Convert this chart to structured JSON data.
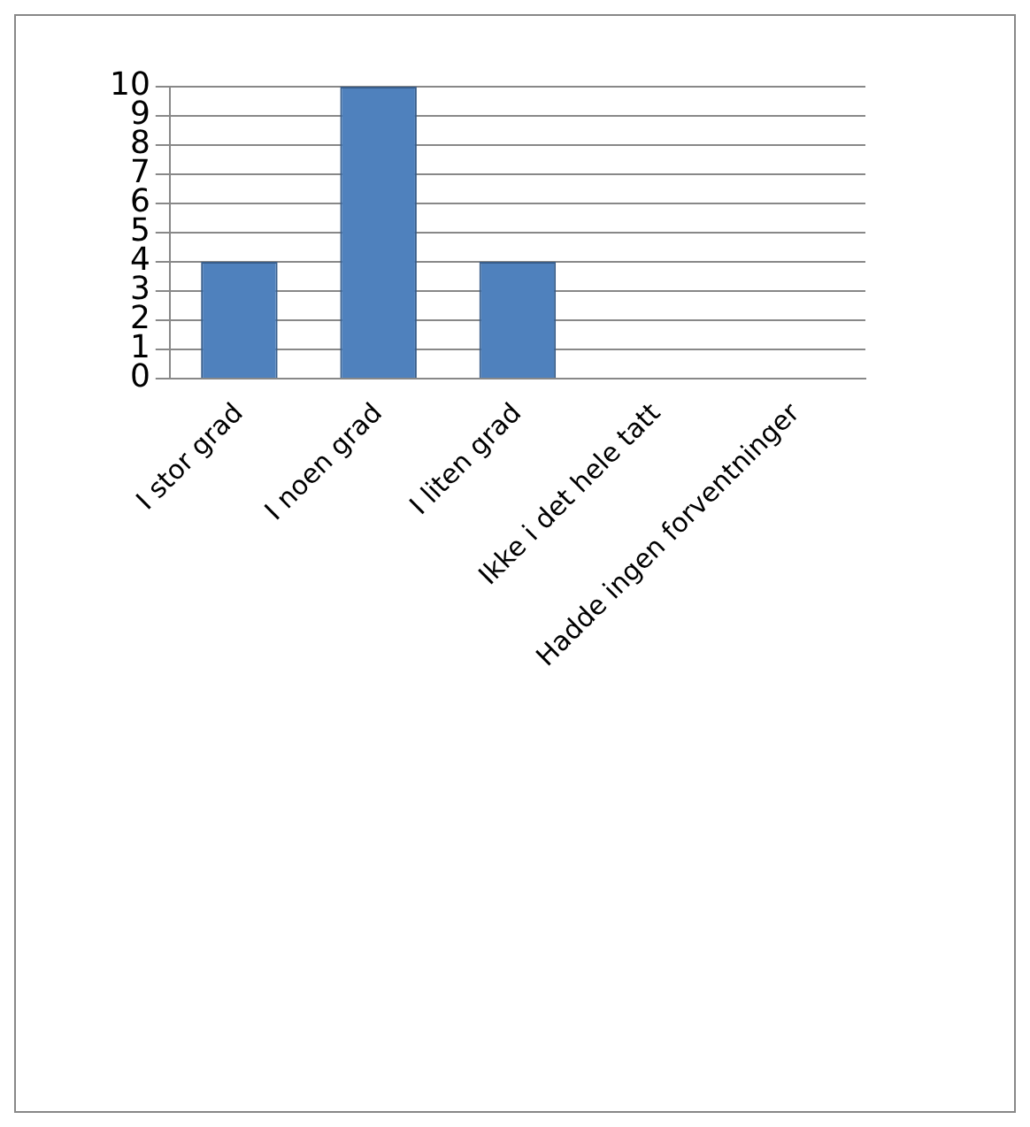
{
  "chart_data": {
    "type": "bar",
    "categories": [
      "I stor grad",
      "I noen grad",
      "I liten grad",
      "Ikke i det hele tatt",
      "Hadde ingen forventninger"
    ],
    "values": [
      4,
      10,
      4,
      0,
      0
    ],
    "color": "#4f81bd",
    "ylim": [
      0,
      10
    ],
    "yticks": [
      0,
      1,
      2,
      3,
      4,
      5,
      6,
      7,
      8,
      9,
      10
    ],
    "grid": "y"
  }
}
